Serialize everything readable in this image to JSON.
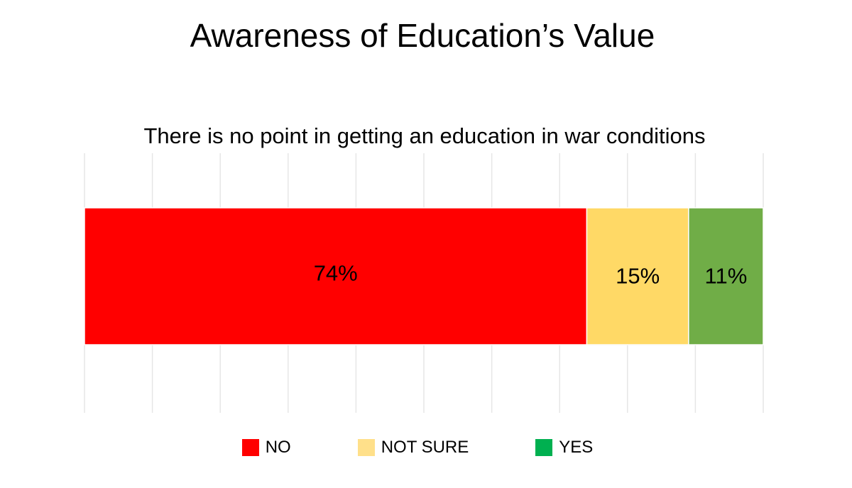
{
  "chart_data": {
    "type": "bar",
    "orientation": "horizontal",
    "stacked": true,
    "percent_stacked": true,
    "title": "Awareness of Education’s Value",
    "subtitle": "There is no point in getting an education in war conditions",
    "categories": [
      ""
    ],
    "series": [
      {
        "name": "NO",
        "values": [
          74
        ],
        "label": "74%",
        "color": "#FF0000"
      },
      {
        "name": "NOT SURE",
        "values": [
          15
        ],
        "label": "15%",
        "color": "#FFD966"
      },
      {
        "name": "YES",
        "values": [
          11
        ],
        "label": "11%",
        "color": "#70AD47"
      }
    ],
    "xlim": [
      0,
      100
    ],
    "xlabel": "",
    "ylabel": "",
    "grid": true,
    "gridline_step": 10,
    "legend": {
      "position": "bottom",
      "entries": [
        {
          "name": "NO",
          "color": "#FF0000"
        },
        {
          "name": "NOT SURE",
          "color": "#FFE08A"
        },
        {
          "name": "YES",
          "color": "#00B050"
        }
      ]
    }
  }
}
